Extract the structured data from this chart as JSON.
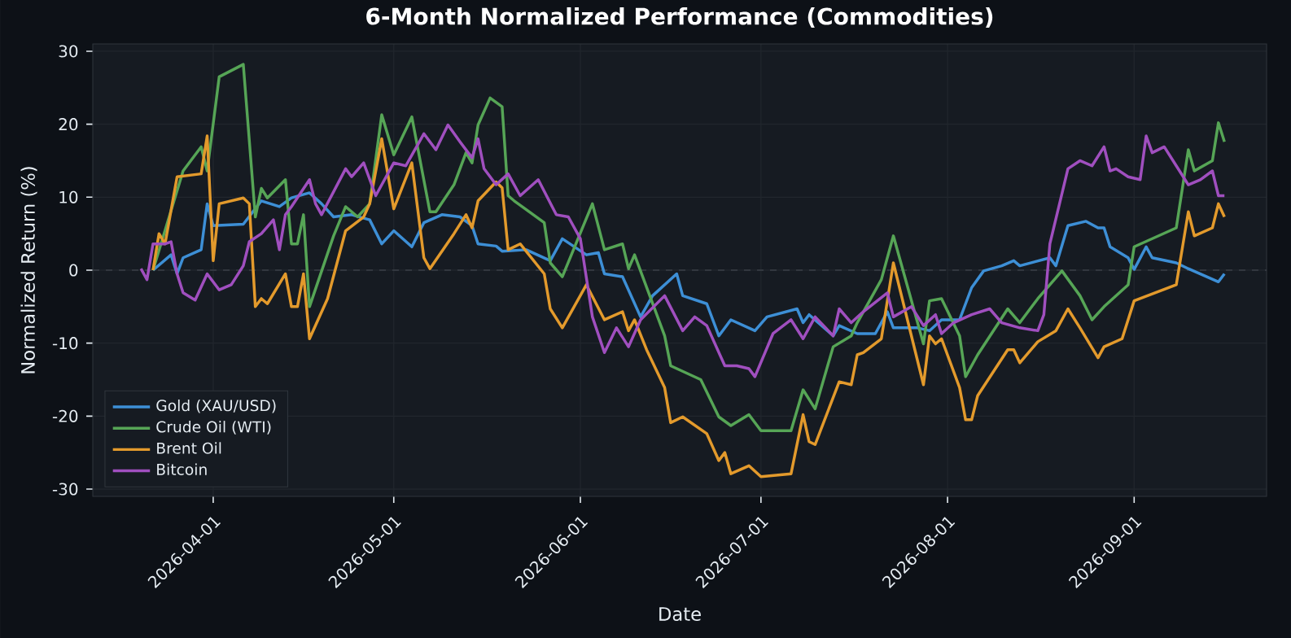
{
  "chart_data": {
    "type": "line",
    "title": "6-Month Normalized Performance (Commodities)",
    "xlabel": "Date",
    "ylabel": "Normalized Return (%)",
    "xlim": [
      "2026-03-12",
      "2026-09-23"
    ],
    "ylim": [
      -31,
      31
    ],
    "xticks": [
      "2026-04-01",
      "2026-05-01",
      "2026-06-01",
      "2026-07-01",
      "2026-08-01",
      "2026-09-01"
    ],
    "yticks": [
      -30,
      -20,
      -10,
      0,
      10,
      20,
      30
    ],
    "grid": true,
    "legend": "bottom left",
    "line_style": "solid",
    "ref_lines": [
      {
        "axis": "y",
        "value": 0,
        "color": "#3a3f47",
        "line_style": "dashed"
      }
    ],
    "series": [
      {
        "name": "Gold (XAU/USD)",
        "color": "#3d8fd6",
        "x": [
          "2026-03-22",
          "2026-03-25",
          "2026-03-26",
          "2026-03-27",
          "2026-03-30",
          "2026-03-31",
          "2026-04-01",
          "2026-04-06",
          "2026-04-09",
          "2026-04-12",
          "2026-04-14",
          "2026-04-17",
          "2026-04-19",
          "2026-04-21",
          "2026-04-24",
          "2026-04-27",
          "2026-04-29",
          "2026-05-01",
          "2026-05-04",
          "2026-05-06",
          "2026-05-09",
          "2026-05-12",
          "2026-05-14",
          "2026-05-15",
          "2026-05-18",
          "2026-05-19",
          "2026-05-23",
          "2026-05-27",
          "2026-05-29",
          "2026-06-02",
          "2026-06-04",
          "2026-06-05",
          "2026-06-08",
          "2026-06-11",
          "2026-06-13",
          "2026-06-17",
          "2026-06-18",
          "2026-06-22",
          "2026-06-24",
          "2026-06-26",
          "2026-06-30",
          "2026-07-02",
          "2026-07-07",
          "2026-07-08",
          "2026-07-09",
          "2026-07-13",
          "2026-07-14",
          "2026-07-17",
          "2026-07-20",
          "2026-07-22",
          "2026-07-23",
          "2026-07-27",
          "2026-07-29",
          "2026-07-31",
          "2026-08-03",
          "2026-08-05",
          "2026-08-07",
          "2026-08-10",
          "2026-08-12",
          "2026-08-13",
          "2026-08-18",
          "2026-08-19",
          "2026-08-21",
          "2026-08-24",
          "2026-08-26",
          "2026-08-27",
          "2026-08-28",
          "2026-08-31",
          "2026-09-01",
          "2026-09-03",
          "2026-09-04",
          "2026-09-08",
          "2026-09-10",
          "2026-09-15",
          "2026-09-16"
        ],
        "values": [
          0,
          2.1,
          -0.5,
          1.7,
          2.8,
          9.1,
          6.1,
          6.3,
          9.5,
          8.7,
          9.9,
          10.6,
          9.1,
          7.3,
          7.6,
          6.9,
          3.6,
          5.4,
          3.2,
          6.5,
          7.6,
          7.3,
          6.1,
          3.6,
          3.3,
          2.6,
          2.8,
          1.3,
          4.3,
          2.1,
          2.4,
          -0.5,
          -0.9,
          -6.4,
          -3.5,
          -0.5,
          -3.5,
          -4.6,
          -9.0,
          -6.8,
          -8.3,
          -6.4,
          -5.3,
          -7.2,
          -6.1,
          -9.0,
          -7.6,
          -8.7,
          -8.7,
          -5.7,
          -7.9,
          -7.9,
          -8.3,
          -6.8,
          -6.8,
          -2.4,
          -0.1,
          0.6,
          1.3,
          0.6,
          1.7,
          0.6,
          6.1,
          6.7,
          5.8,
          5.8,
          3.2,
          1.7,
          0.1,
          3.2,
          1.7,
          1.0,
          0.2,
          -1.6,
          -0.5
        ]
      },
      {
        "name": "Crude Oil (WTI)",
        "color": "#56a556",
        "x": [
          "2026-03-22",
          "2026-03-27",
          "2026-03-30",
          "2026-03-31",
          "2026-04-02",
          "2026-04-06",
          "2026-04-08",
          "2026-04-09",
          "2026-04-10",
          "2026-04-13",
          "2026-04-14",
          "2026-04-15",
          "2026-04-16",
          "2026-04-17",
          "2026-04-21",
          "2026-04-23",
          "2026-04-25",
          "2026-04-27",
          "2026-04-29",
          "2026-05-01",
          "2026-05-04",
          "2026-05-07",
          "2026-05-08",
          "2026-05-11",
          "2026-05-13",
          "2026-05-14",
          "2026-05-15",
          "2026-05-17",
          "2026-05-19",
          "2026-05-20",
          "2026-05-21",
          "2026-05-26",
          "2026-05-27",
          "2026-05-29",
          "2026-06-03",
          "2026-06-05",
          "2026-06-08",
          "2026-06-09",
          "2026-06-10",
          "2026-06-15",
          "2026-06-16",
          "2026-06-21",
          "2026-06-24",
          "2026-06-26",
          "2026-06-29",
          "2026-07-01",
          "2026-07-06",
          "2026-07-08",
          "2026-07-10",
          "2026-07-13",
          "2026-07-16",
          "2026-07-17",
          "2026-07-21",
          "2026-07-23",
          "2026-07-28",
          "2026-07-29",
          "2026-07-31",
          "2026-08-03",
          "2026-08-04",
          "2026-08-06",
          "2026-08-11",
          "2026-08-13",
          "2026-08-16",
          "2026-08-20",
          "2026-08-23",
          "2026-08-25",
          "2026-08-27",
          "2026-08-31",
          "2026-09-01",
          "2026-09-08",
          "2026-09-10",
          "2026-09-11",
          "2026-09-14",
          "2026-09-15",
          "2026-09-16"
        ],
        "values": [
          0,
          13.6,
          16.9,
          13.6,
          26.5,
          28.2,
          7.3,
          11.2,
          9.9,
          12.4,
          3.6,
          3.6,
          7.6,
          -5.0,
          4.7,
          8.7,
          7.3,
          9.1,
          21.3,
          15.8,
          21.0,
          8.0,
          8.0,
          11.7,
          16.1,
          14.7,
          19.9,
          23.6,
          22.4,
          10.2,
          9.5,
          6.5,
          1.0,
          -0.9,
          9.1,
          2.8,
          3.6,
          0.2,
          2.1,
          -9.0,
          -13.1,
          -15.0,
          -20.1,
          -21.3,
          -19.8,
          -22.0,
          -22.0,
          -16.4,
          -19.0,
          -10.5,
          -9.0,
          -7.2,
          -1.3,
          4.7,
          -10.1,
          -4.2,
          -3.9,
          -9.0,
          -14.6,
          -11.6,
          -5.3,
          -7.2,
          -3.9,
          -0.1,
          -3.5,
          -6.8,
          -5.0,
          -2.0,
          3.2,
          5.8,
          16.5,
          13.6,
          15.0,
          20.2,
          17.6
        ]
      },
      {
        "name": "Brent Oil",
        "color": "#e39a2c",
        "x": [
          "2026-03-22",
          "2026-03-23",
          "2026-03-24",
          "2026-03-26",
          "2026-03-30",
          "2026-03-31",
          "2026-04-01",
          "2026-04-02",
          "2026-04-06",
          "2026-04-07",
          "2026-04-08",
          "2026-04-09",
          "2026-04-10",
          "2026-04-13",
          "2026-04-14",
          "2026-04-15",
          "2026-04-16",
          "2026-04-17",
          "2026-04-20",
          "2026-04-23",
          "2026-04-26",
          "2026-04-27",
          "2026-04-29",
          "2026-05-01",
          "2026-05-04",
          "2026-05-06",
          "2026-05-07",
          "2026-05-11",
          "2026-05-13",
          "2026-05-14",
          "2026-05-15",
          "2026-05-18",
          "2026-05-19",
          "2026-05-20",
          "2026-05-22",
          "2026-05-26",
          "2026-05-27",
          "2026-05-29",
          "2026-06-02",
          "2026-06-05",
          "2026-06-08",
          "2026-06-09",
          "2026-06-10",
          "2026-06-12",
          "2026-06-15",
          "2026-06-16",
          "2026-06-18",
          "2026-06-22",
          "2026-06-24",
          "2026-06-25",
          "2026-06-26",
          "2026-06-29",
          "2026-07-01",
          "2026-07-06",
          "2026-07-08",
          "2026-07-09",
          "2026-07-10",
          "2026-07-14",
          "2026-07-16",
          "2026-07-17",
          "2026-07-18",
          "2026-07-21",
          "2026-07-23",
          "2026-07-28",
          "2026-07-29",
          "2026-07-30",
          "2026-07-31",
          "2026-08-03",
          "2026-08-04",
          "2026-08-05",
          "2026-08-06",
          "2026-08-11",
          "2026-08-12",
          "2026-08-13",
          "2026-08-16",
          "2026-08-19",
          "2026-08-21",
          "2026-08-23",
          "2026-08-26",
          "2026-08-27",
          "2026-08-30",
          "2026-09-01",
          "2026-09-08",
          "2026-09-10",
          "2026-09-11",
          "2026-09-14",
          "2026-09-15",
          "2026-09-16"
        ],
        "values": [
          0,
          5.0,
          3.6,
          12.8,
          13.2,
          18.4,
          1.3,
          9.1,
          9.9,
          9.1,
          -5.0,
          -3.9,
          -4.6,
          -0.5,
          -5.0,
          -5.0,
          -0.5,
          -9.4,
          -3.9,
          5.4,
          7.3,
          9.1,
          18.0,
          8.4,
          14.7,
          1.7,
          0.2,
          5.0,
          7.6,
          5.8,
          9.5,
          12.1,
          11.3,
          2.8,
          3.6,
          -0.5,
          -5.3,
          -7.9,
          -2.0,
          -6.8,
          -5.7,
          -8.3,
          -6.8,
          -10.9,
          -16.1,
          -20.9,
          -20.1,
          -22.4,
          -26.1,
          -25.0,
          -27.9,
          -26.8,
          -28.3,
          -27.9,
          -19.8,
          -23.5,
          -23.9,
          -15.3,
          -15.7,
          -11.6,
          -11.3,
          -9.4,
          1.0,
          -15.7,
          -9.0,
          -10.1,
          -9.4,
          -16.1,
          -20.5,
          -20.5,
          -17.2,
          -10.9,
          -10.9,
          -12.7,
          -9.8,
          -8.3,
          -5.3,
          -7.9,
          -12.0,
          -10.5,
          -9.4,
          -4.2,
          -2.0,
          8.0,
          4.7,
          5.8,
          9.1,
          7.3
        ]
      },
      {
        "name": "Bitcoin",
        "color": "#a04fbf",
        "x": [
          "2026-03-20",
          "2026-03-21",
          "2026-03-22",
          "2026-03-24",
          "2026-03-25",
          "2026-03-26",
          "2026-03-27",
          "2026-03-29",
          "2026-03-31",
          "2026-04-02",
          "2026-04-04",
          "2026-04-06",
          "2026-04-07",
          "2026-04-09",
          "2026-04-11",
          "2026-04-12",
          "2026-04-13",
          "2026-04-14",
          "2026-04-17",
          "2026-04-18",
          "2026-04-19",
          "2026-04-23",
          "2026-04-24",
          "2026-04-26",
          "2026-04-28",
          "2026-05-01",
          "2026-05-03",
          "2026-05-06",
          "2026-05-08",
          "2026-05-10",
          "2026-05-12",
          "2026-05-14",
          "2026-05-15",
          "2026-05-16",
          "2026-05-18",
          "2026-05-20",
          "2026-05-22",
          "2026-05-25",
          "2026-05-28",
          "2026-05-30",
          "2026-06-01",
          "2026-06-03",
          "2026-06-05",
          "2026-06-07",
          "2026-06-09",
          "2026-06-11",
          "2026-06-15",
          "2026-06-18",
          "2026-06-20",
          "2026-06-22",
          "2026-06-25",
          "2026-06-27",
          "2026-06-29",
          "2026-06-30",
          "2026-07-03",
          "2026-07-06",
          "2026-07-08",
          "2026-07-10",
          "2026-07-13",
          "2026-07-14",
          "2026-07-16",
          "2026-07-18",
          "2026-07-22",
          "2026-07-23",
          "2026-07-26",
          "2026-07-28",
          "2026-07-30",
          "2026-07-31",
          "2026-08-02",
          "2026-08-05",
          "2026-08-08",
          "2026-08-10",
          "2026-08-13",
          "2026-08-16",
          "2026-08-17",
          "2026-08-18",
          "2026-08-21",
          "2026-08-23",
          "2026-08-25",
          "2026-08-27",
          "2026-08-28",
          "2026-08-29",
          "2026-08-31",
          "2026-09-02",
          "2026-09-03",
          "2026-09-04",
          "2026-09-06",
          "2026-09-08",
          "2026-09-10",
          "2026-09-12",
          "2026-09-14",
          "2026-09-15",
          "2026-09-16"
        ],
        "values": [
          0.2,
          -1.3,
          3.6,
          3.6,
          3.9,
          -0.5,
          -3.1,
          -4.1,
          -0.5,
          -2.7,
          -2.0,
          0.6,
          3.9,
          5.0,
          6.9,
          2.8,
          7.6,
          8.7,
          12.4,
          9.1,
          7.6,
          13.9,
          12.8,
          14.7,
          10.2,
          14.7,
          14.3,
          18.7,
          16.5,
          19.9,
          17.6,
          15.4,
          18.0,
          13.9,
          11.7,
          13.2,
          10.2,
          12.4,
          7.6,
          7.3,
          4.3,
          -6.4,
          -11.3,
          -7.9,
          -10.5,
          -6.8,
          -3.5,
          -8.3,
          -6.4,
          -7.6,
          -13.1,
          -13.1,
          -13.5,
          -14.6,
          -8.7,
          -6.8,
          -9.4,
          -6.4,
          -9.0,
          -5.3,
          -7.2,
          -5.7,
          -3.1,
          -6.4,
          -5.0,
          -7.6,
          -6.1,
          -8.7,
          -7.2,
          -6.1,
          -5.3,
          -7.2,
          -7.9,
          -8.3,
          -6.1,
          3.6,
          13.9,
          15.0,
          14.3,
          16.9,
          13.6,
          13.9,
          12.8,
          12.4,
          18.4,
          16.1,
          16.9,
          14.3,
          11.7,
          12.4,
          13.6,
          10.2,
          10.2
        ]
      }
    ]
  }
}
